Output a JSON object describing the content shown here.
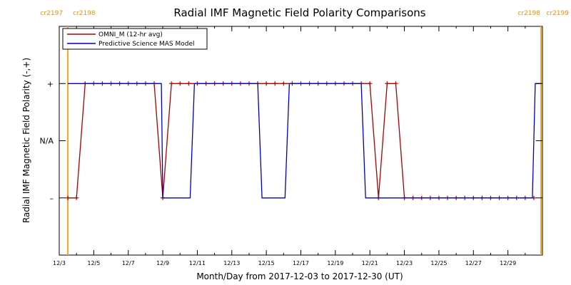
{
  "chart_data": {
    "type": "line",
    "title": "Radial IMF Magnetic Field Polarity Comparisons",
    "xlabel": "Month/Day from 2017-12-03 to 2017-12-30 (UT)",
    "ylabel": "Radial IMF Magnetic Field Polarity (-,+)",
    "x_range": [
      "2017-12-03",
      "2017-12-31"
    ],
    "xticks": [
      "12/3",
      "12/5",
      "12/7",
      "12/9",
      "12/11",
      "12/13",
      "12/15",
      "12/17",
      "12/19",
      "12/21",
      "12/23",
      "12/25",
      "12/27",
      "12/29"
    ],
    "xtick_dates": [
      "2017-12-03",
      "2017-12-05",
      "2017-12-07",
      "2017-12-09",
      "2017-12-11",
      "2017-12-13",
      "2017-12-15",
      "2017-12-17",
      "2017-12-19",
      "2017-12-21",
      "2017-12-23",
      "2017-12-25",
      "2017-12-27",
      "2017-12-29"
    ],
    "yticks": [
      {
        "label": "+",
        "value": 1
      },
      {
        "label": "N/A",
        "value": 0
      },
      {
        "label": "–",
        "value": -1
      }
    ],
    "ylim": [
      -2,
      2
    ],
    "legend_position": "top-left",
    "rotations": [
      {
        "left": "cr2197",
        "right": "cr2198",
        "date": "2017-12-03 12:00"
      },
      {
        "left": "cr2198",
        "right": "cr2199",
        "date": "2017-12-30 22:00"
      }
    ],
    "series": [
      {
        "name": "OMNI_M (12-hr avg)",
        "color": "#aa0000",
        "markers": true,
        "points": [
          [
            "2017-12-03 12:00",
            -1
          ],
          [
            "2017-12-04 00:00",
            -1
          ],
          [
            "2017-12-04 12:00",
            1
          ],
          [
            "2017-12-05 00:00",
            1
          ],
          [
            "2017-12-05 12:00",
            1
          ],
          [
            "2017-12-06 00:00",
            1
          ],
          [
            "2017-12-06 12:00",
            1
          ],
          [
            "2017-12-07 00:00",
            1
          ],
          [
            "2017-12-07 12:00",
            1
          ],
          [
            "2017-12-08 00:00",
            1
          ],
          [
            "2017-12-08 12:00",
            1
          ],
          [
            "2017-12-09 00:00",
            -1
          ],
          [
            "2017-12-09 12:00",
            1
          ],
          [
            "2017-12-10 00:00",
            1
          ],
          [
            "2017-12-10 12:00",
            1
          ],
          [
            "2017-12-11 00:00",
            1
          ],
          [
            "2017-12-11 12:00",
            1
          ],
          [
            "2017-12-12 00:00",
            1
          ],
          [
            "2017-12-12 12:00",
            1
          ],
          [
            "2017-12-13 00:00",
            1
          ],
          [
            "2017-12-13 12:00",
            1
          ],
          [
            "2017-12-14 00:00",
            1
          ],
          [
            "2017-12-14 12:00",
            1
          ],
          [
            "2017-12-15 00:00",
            1
          ],
          [
            "2017-12-15 12:00",
            1
          ],
          [
            "2017-12-16 00:00",
            1
          ],
          [
            "2017-12-16 12:00",
            1
          ],
          [
            "2017-12-17 00:00",
            1
          ],
          [
            "2017-12-17 12:00",
            1
          ],
          [
            "2017-12-18 00:00",
            1
          ],
          [
            "2017-12-18 12:00",
            1
          ],
          [
            "2017-12-19 00:00",
            1
          ],
          [
            "2017-12-19 12:00",
            1
          ],
          [
            "2017-12-20 00:00",
            1
          ],
          [
            "2017-12-20 12:00",
            1
          ],
          [
            "2017-12-21 00:00",
            1
          ],
          [
            "2017-12-21 12:00",
            -1
          ],
          [
            "2017-12-22 00:00",
            1
          ],
          [
            "2017-12-22 12:00",
            1
          ],
          [
            "2017-12-23 00:00",
            -1
          ],
          [
            "2017-12-23 12:00",
            -1
          ],
          [
            "2017-12-24 00:00",
            -1
          ],
          [
            "2017-12-24 12:00",
            -1
          ],
          [
            "2017-12-25 00:00",
            -1
          ],
          [
            "2017-12-25 12:00",
            -1
          ],
          [
            "2017-12-26 00:00",
            -1
          ],
          [
            "2017-12-26 12:00",
            -1
          ],
          [
            "2017-12-27 00:00",
            -1
          ],
          [
            "2017-12-27 12:00",
            -1
          ],
          [
            "2017-12-28 00:00",
            -1
          ],
          [
            "2017-12-28 12:00",
            -1
          ],
          [
            "2017-12-29 00:00",
            -1
          ],
          [
            "2017-12-29 12:00",
            -1
          ],
          [
            "2017-12-30 00:00",
            -1
          ],
          [
            "2017-12-30 12:00",
            -1
          ]
        ]
      },
      {
        "name": "Predictive Science MAS Model",
        "color": "#0000bb",
        "markers": false,
        "points": [
          [
            "2017-12-03 12:00",
            1
          ],
          [
            "2017-12-08 22:00",
            1
          ],
          [
            "2017-12-09 00:00",
            -1
          ],
          [
            "2017-12-10 14:00",
            -1
          ],
          [
            "2017-12-10 20:00",
            1
          ],
          [
            "2017-12-14 12:00",
            1
          ],
          [
            "2017-12-14 18:00",
            -1
          ],
          [
            "2017-12-16 02:00",
            -1
          ],
          [
            "2017-12-16 08:00",
            1
          ],
          [
            "2017-12-20 12:00",
            1
          ],
          [
            "2017-12-20 18:00",
            -1
          ],
          [
            "2017-12-30 10:00",
            -1
          ],
          [
            "2017-12-30 14:00",
            1
          ],
          [
            "2017-12-30 22:00",
            1
          ]
        ]
      }
    ]
  }
}
